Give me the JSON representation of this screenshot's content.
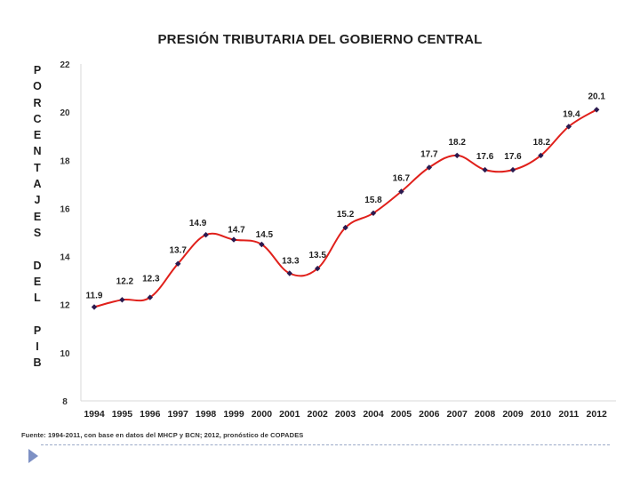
{
  "chart_data": {
    "type": "line",
    "title": "PRESIÓN TRIBUTARIA DEL GOBIERNO CENTRAL",
    "ylabel": "PORCENTAJES DEL PIB",
    "xlabel": "",
    "categories": [
      "1994",
      "1995",
      "1996",
      "1997",
      "1998",
      "1999",
      "2000",
      "2001",
      "2002",
      "2003",
      "2004",
      "2005",
      "2006",
      "2007",
      "2008",
      "2009",
      "2010",
      "2011",
      "2012"
    ],
    "series": [
      {
        "name": "Presión tributaria",
        "values": [
          11.9,
          12.2,
          12.3,
          13.7,
          14.9,
          14.7,
          14.5,
          13.3,
          13.5,
          15.2,
          15.8,
          16.7,
          17.7,
          18.2,
          17.6,
          17.6,
          18.2,
          19.4,
          20.1
        ],
        "labels": [
          "11.9",
          "12.2",
          "12.3",
          "13.7",
          "14.9",
          "14.7",
          "14.5",
          "13.3",
          "13.5",
          "15.2",
          "15.8",
          "16.7",
          "17.7",
          "18.2",
          "17.6",
          "17.6",
          "18.2",
          "19.4",
          "20.1"
        ],
        "color": "#e0201b",
        "marker_color": "#2b1a4f"
      }
    ],
    "yticks": [
      "8",
      "10",
      "12",
      "14",
      "16",
      "18",
      "20",
      "22"
    ],
    "ylim": [
      8,
      22
    ],
    "grid": false,
    "source": "Fuente: 1994-2011, con base en datos del MHCP y BCN; 2012, pronóstico de COPADES"
  }
}
